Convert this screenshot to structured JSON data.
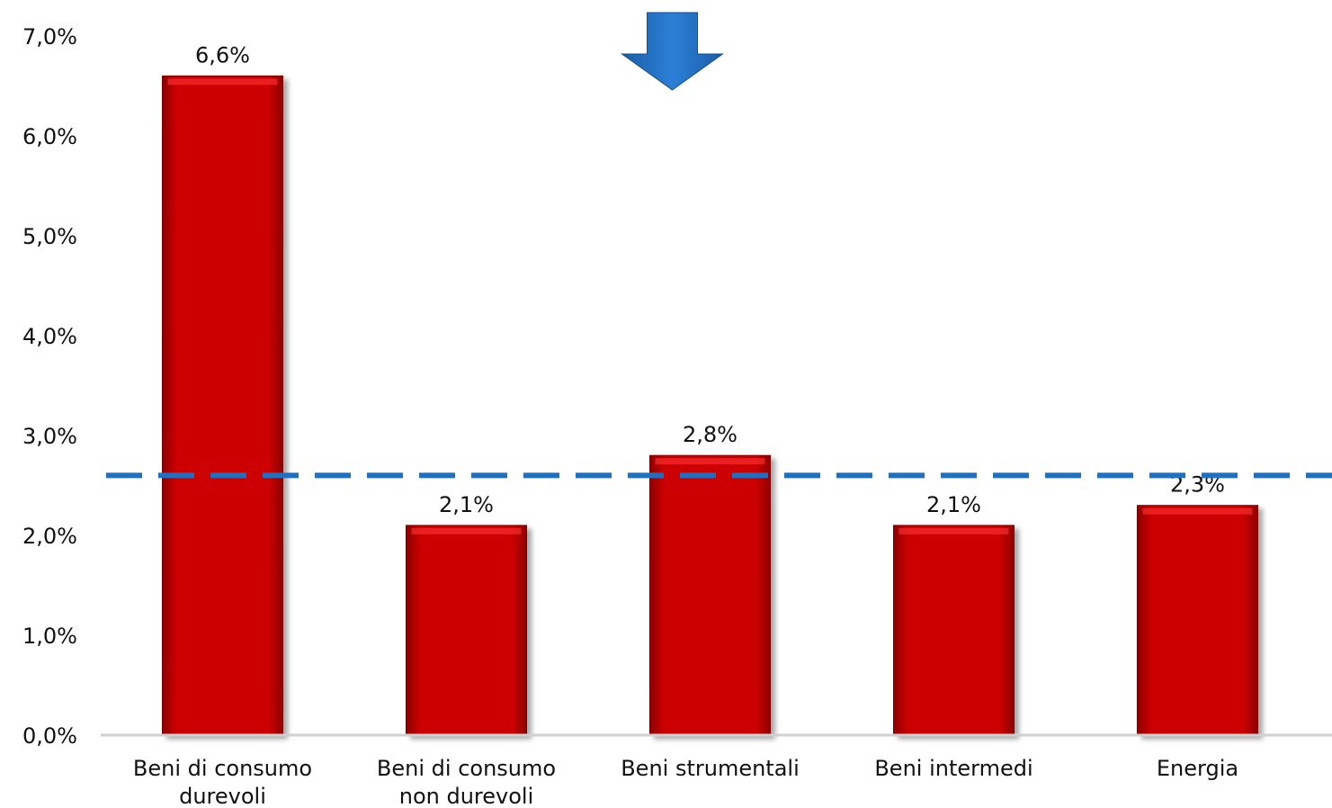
{
  "chart_data": {
    "type": "bar",
    "title": "",
    "xlabel": "",
    "ylabel": "",
    "categories": [
      [
        "Beni di consumo",
        "durevoli"
      ],
      [
        "Beni di consumo",
        "non durevoli"
      ],
      [
        "Beni strumentali"
      ],
      [
        "Beni intermedi"
      ],
      [
        "Energia"
      ]
    ],
    "values": [
      6.6,
      2.1,
      2.8,
      2.1,
      2.3
    ],
    "value_labels": [
      "6,6%",
      "2,1%",
      "2,8%",
      "2,1%",
      "2,3%"
    ],
    "ylim": [
      0,
      7
    ],
    "yticks": [
      0,
      1,
      2,
      3,
      4,
      5,
      6,
      7
    ],
    "ytick_labels": [
      "0,0%",
      "1,0%",
      "2,0%",
      "3,0%",
      "4,0%",
      "5,0%",
      "6,0%",
      "7,0%"
    ],
    "reference_line": {
      "value": 2.6,
      "style": "dashed"
    },
    "annotation_arrow": {
      "direction": "down",
      "category_index": 2
    },
    "grid": false,
    "legend": "none",
    "colors": {
      "bar": "#cc0000",
      "bar_highlight": "#ff3333",
      "bar_edge": "#7a0000",
      "reference_line": "#1f70c1",
      "arrow": "#1f6fc0",
      "axis": "#d0d0d0"
    }
  }
}
